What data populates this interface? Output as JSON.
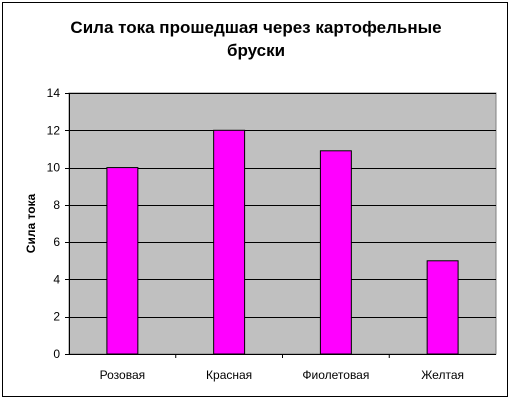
{
  "chart_data": {
    "type": "bar",
    "title_lines": [
      "Сила тока прошедшая через картофельные",
      "бруски"
    ],
    "categories": [
      "Розовая",
      "Красная",
      "Фиолетовая",
      "Желтая"
    ],
    "values": [
      10,
      12,
      10.9,
      5
    ],
    "xlabel": "",
    "ylabel": "Сила тока",
    "ylim": [
      0,
      14
    ],
    "yticks": [
      "0",
      "2",
      "4",
      "6",
      "8",
      "10",
      "12",
      "14"
    ],
    "grid": true,
    "legend": "none"
  },
  "colors": {
    "bar_fill": "#ff00ff",
    "plot_background": "#c0c0c0",
    "gridline": "#000000"
  }
}
